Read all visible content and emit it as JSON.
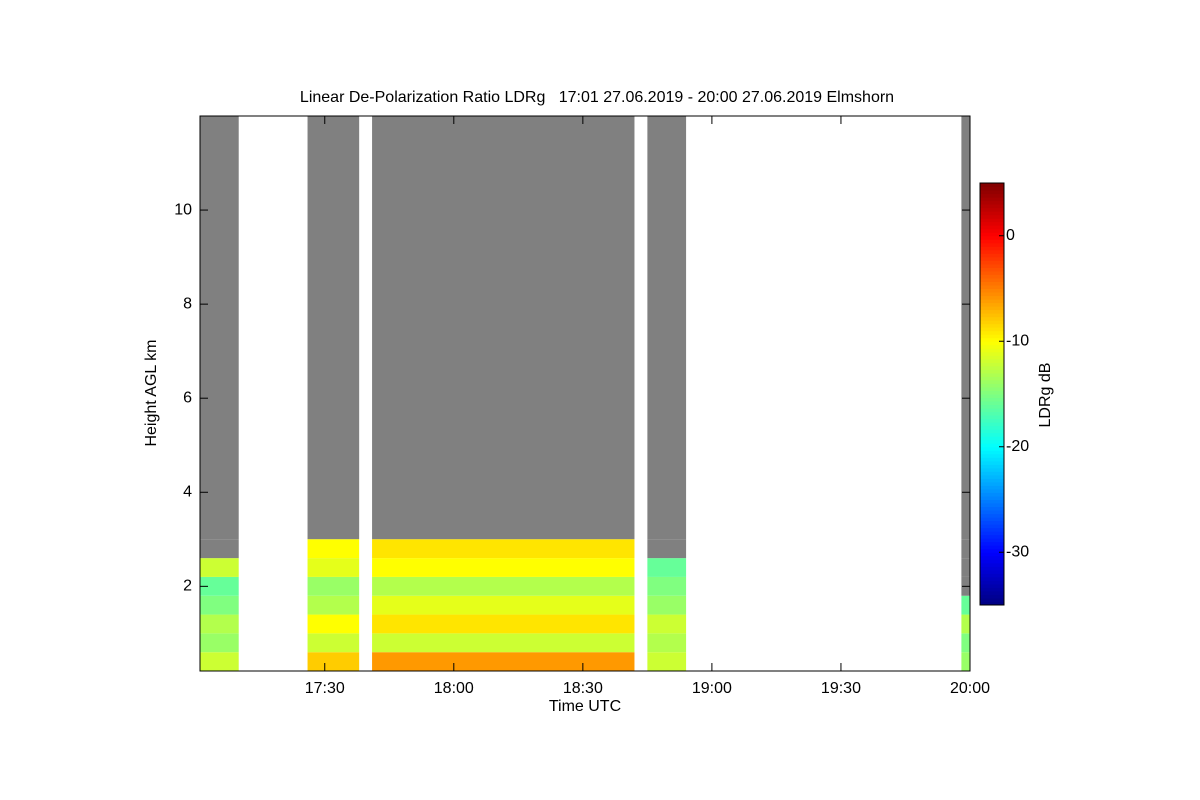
{
  "chart_data": {
    "type": "heatmap",
    "title": "Linear De-Polarization Ratio LDRg   17:01 27.06.2019 - 20:00 27.06.2019 Elmshorn",
    "x_label": "Time UTC",
    "y_label": "Height AGL km",
    "xlim": [
      "17:01",
      "20:00"
    ],
    "xticks": [
      "17:30",
      "18:00",
      "18:30",
      "19:00",
      "19:30",
      "20:00"
    ],
    "ylim": [
      0.2,
      12
    ],
    "yticks": [
      2,
      4,
      6,
      8,
      10
    ],
    "heights": [
      0.2,
      0.6,
      1.0,
      1.4,
      1.8,
      2.2,
      2.6,
      3.0
    ],
    "fill_color": "#808080",
    "segments": [
      {
        "start": "17:01",
        "end": "17:10",
        "ldr": [
          -12,
          -14,
          -13,
          -15,
          -16,
          -12,
          null
        ]
      },
      {
        "start": "17:26",
        "end": "17:38",
        "ldr": [
          -8,
          -12,
          -10,
          -13,
          -14,
          -11,
          -10
        ]
      },
      {
        "start": "17:41",
        "end": "18:42",
        "ldr": [
          -6,
          -12,
          -9,
          -11,
          -13,
          -10,
          -9
        ]
      },
      {
        "start": "18:45",
        "end": "18:54",
        "ldr": [
          -12,
          -13,
          -12,
          -14,
          -15,
          -16,
          null
        ]
      },
      {
        "start": "19:58",
        "end": "20:00",
        "ldr": [
          -14,
          -15,
          -13,
          -16,
          null,
          null,
          null
        ]
      }
    ],
    "colorbar": {
      "label": "LDRg dB",
      "zlim": [
        -35,
        5
      ],
      "ticks": [
        0,
        -10,
        -20,
        -30
      ],
      "colormap": "jet"
    }
  }
}
